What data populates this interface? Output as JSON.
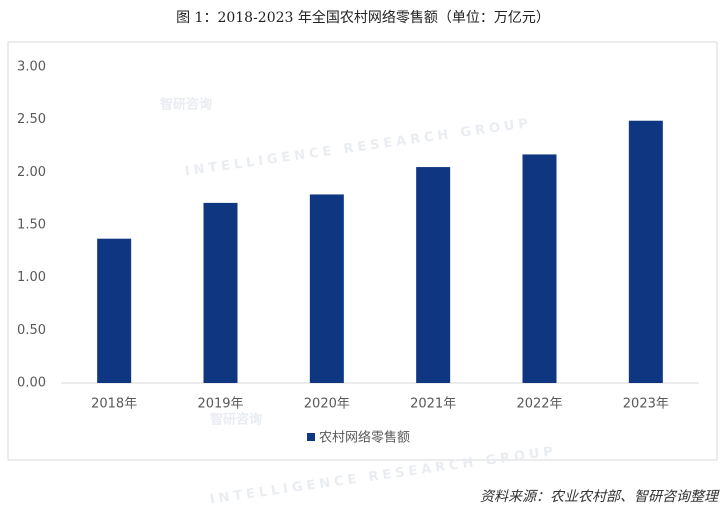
{
  "chart_data": {
    "type": "bar",
    "title": "图 1：2018-2023 年全国农村网络零售额（单位：万亿元）",
    "categories": [
      "2018年",
      "2019年",
      "2020年",
      "2021年",
      "2022年",
      "2023年"
    ],
    "series": [
      {
        "name": "农村网络零售额",
        "color": "#0f3681",
        "values": [
          1.37,
          1.71,
          1.79,
          2.05,
          2.17,
          2.49
        ]
      }
    ],
    "ylim": [
      0,
      3
    ],
    "yticks": [
      {
        "value": 0,
        "label": "0.00"
      },
      {
        "value": 0.5,
        "label": "0.50"
      },
      {
        "value": 1,
        "label": "1.00"
      },
      {
        "value": 1.5,
        "label": "1.50"
      },
      {
        "value": 2,
        "label": "2.00"
      },
      {
        "value": 2.5,
        "label": "2.50"
      },
      {
        "value": 3,
        "label": "3.00"
      }
    ],
    "grid": false,
    "legend": "bottom",
    "source": "资料来源：农业农村部、智研咨询整理",
    "watermark": "智研咨询",
    "watermark_subtitle": "INTELLIGENCE RESEARCH GROUP"
  }
}
